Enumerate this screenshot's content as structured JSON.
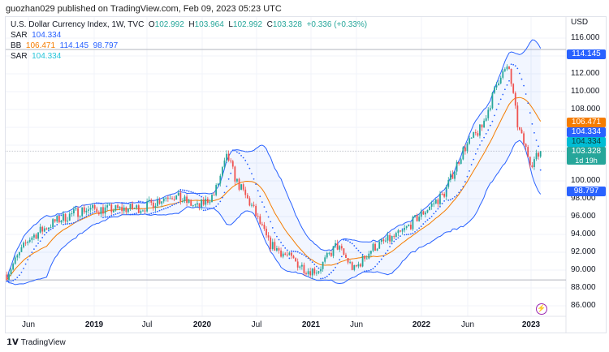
{
  "publisher": "guozhan029 published on TradingView.com, Feb 09, 2023 05:23 UTC",
  "legend": {
    "symbol": "U.S. Dollar Currency Index, 1W, TVC",
    "o_label": "O",
    "o": "102.992",
    "h_label": "H",
    "h": "103.964",
    "l_label": "L",
    "l": "102.992",
    "c_label": "C",
    "c": "103.328",
    "change": "+0.336 (+0.33%)",
    "sar1_label": "SAR",
    "sar1": "104.334",
    "bb_label": "BB",
    "bb_mid": "106.471",
    "bb_up": "114.145",
    "bb_low": "98.797",
    "sar2_label": "SAR",
    "sar2": "104.334"
  },
  "axis": {
    "currency": "USD",
    "ticks": [
      "116.000",
      "112.000",
      "110.000",
      "108.000",
      "100.000",
      "98.000",
      "96.000",
      "94.000",
      "92.000",
      "90.000",
      "88.000",
      "86.000"
    ]
  },
  "price_labels": {
    "bb_up": "114.145",
    "bb_mid": "106.471",
    "sar1": "104.334",
    "sar2": "104.334",
    "close": "103.328",
    "countdown": "1d 19h",
    "bb_low": "98.797"
  },
  "time_axis": [
    {
      "t": "Jun",
      "b": false
    },
    {
      "t": "2019",
      "b": true
    },
    {
      "t": "Jul",
      "b": false
    },
    {
      "t": "2020",
      "b": true
    },
    {
      "t": "Jul",
      "b": false
    },
    {
      "t": "2021",
      "b": true
    },
    {
      "t": "Jun",
      "b": false
    },
    {
      "t": "2022",
      "b": true
    },
    {
      "t": "Jun",
      "b": false
    },
    {
      "t": "2023",
      "b": true
    }
  ],
  "brand": "TradingView",
  "colors": {
    "up": "#26a69a",
    "down": "#ef5350",
    "bb_mid": "#f57c00",
    "bb_band": "#2962ff",
    "sar": "#2962ff"
  },
  "chart_data": {
    "type": "candlestick",
    "ylim": [
      85,
      117
    ],
    "interval": "1W",
    "path": [
      [
        2018.2,
        89.5
      ],
      [
        2018.4,
        93.5
      ],
      [
        2018.65,
        95.5
      ],
      [
        2018.9,
        96.8
      ],
      [
        2019.2,
        96.8
      ],
      [
        2019.45,
        97
      ],
      [
        2019.7,
        98.5
      ],
      [
        2019.95,
        97
      ],
      [
        2020.1,
        98.5
      ],
      [
        2020.22,
        102.8
      ],
      [
        2020.3,
        100
      ],
      [
        2020.45,
        97
      ],
      [
        2020.6,
        93
      ],
      [
        2020.95,
        90
      ],
      [
        2021.05,
        90
      ],
      [
        2021.22,
        92.8
      ],
      [
        2021.38,
        90
      ],
      [
        2021.55,
        92.5
      ],
      [
        2021.8,
        94
      ],
      [
        2021.97,
        96
      ],
      [
        2022.2,
        98.5
      ],
      [
        2022.38,
        103.5
      ],
      [
        2022.55,
        106
      ],
      [
        2022.72,
        112
      ],
      [
        2022.8,
        112.5
      ],
      [
        2022.88,
        106
      ],
      [
        2023.0,
        102
      ],
      [
        2023.1,
        103.3
      ]
    ]
  }
}
